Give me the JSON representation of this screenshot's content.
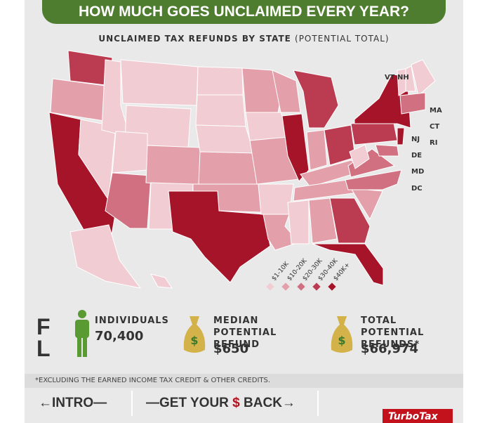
{
  "header": {
    "title": "HOW MUCH GOES UNCLAIMED EVERY YEAR?"
  },
  "map": {
    "title": "UNCLAIMED TAX REFUNDS BY STATE",
    "subtitle": "(POTENTIAL TOTAL)",
    "labels": [
      "VT",
      "NH",
      "MA",
      "CT",
      "RI",
      "NJ",
      "DE",
      "MD",
      "DC"
    ],
    "legend": [
      {
        "label": "$1-10K",
        "color": "#f1ccd2"
      },
      {
        "label": "$10-20K",
        "color": "#e3a0aa"
      },
      {
        "label": "$20-30K",
        "color": "#d07081"
      },
      {
        "label": "$30-40K",
        "color": "#bb3c51"
      },
      {
        "label": "$40K+",
        "color": "#a51428"
      }
    ],
    "tiers": [
      3,
      1,
      4,
      0,
      0,
      0,
      0,
      0,
      2,
      1,
      0,
      0,
      0,
      0,
      1,
      1,
      4,
      1,
      0,
      1,
      0,
      1,
      1,
      4,
      3,
      1,
      3,
      1,
      1,
      0,
      1,
      3,
      4,
      1,
      2,
      2,
      0,
      3,
      4,
      4,
      2,
      0,
      0,
      0,
      2,
      0,
      0
    ]
  },
  "state": "FL",
  "stats": [
    {
      "label": "INDIVIDUALS",
      "value": "70,400"
    },
    {
      "label": "MEDIAN POTENTIAL REFUND",
      "value": "$650"
    },
    {
      "label": "TOTAL POTENTIAL REFUNDS*",
      "value": "$66,974"
    }
  ],
  "footnote": "*EXCLUDING THE EARNED INCOME TAX CREDIT & OTHER CREDITS.",
  "nav": {
    "back": "INTRO",
    "forward": {
      "prefix": "GET YOUR",
      "highlight": "$",
      "suffix": "BACK"
    }
  },
  "logo": "TurboTax"
}
